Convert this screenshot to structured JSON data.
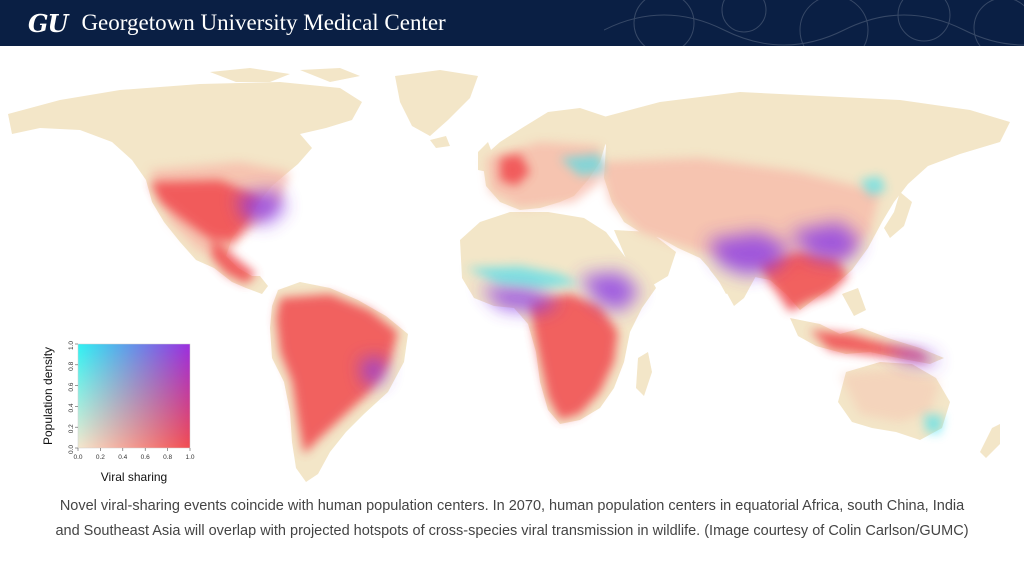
{
  "header": {
    "logo_text": "GU",
    "org_name": "Georgetown University Medical Center"
  },
  "map": {
    "legend": {
      "x_axis_label": "Viral sharing",
      "y_axis_label": "Population density",
      "x_ticks": [
        "0.0",
        "0.2",
        "0.4",
        "0.6",
        "0.8",
        "1.0"
      ],
      "y_ticks": [
        "0.0",
        "0.2",
        "0.4",
        "0.6",
        "0.8",
        "1.0"
      ],
      "colors": {
        "low_low": "#f4e8cf",
        "high_viral_low_pop": "#f24b50",
        "low_viral_high_pop": "#2ef2f2",
        "high_high": "#9b2de0"
      }
    },
    "colors": {
      "land_base": "#f3e6c8",
      "ocean": "#ffffff"
    }
  },
  "caption": {
    "line1": "Novel viral-sharing events coincide with human population centers. In 2070, human population centers in equatorial Africa, south China, India",
    "line2": "and Southeast Asia will overlap with projected hotspots of cross-species viral transmission in wildlife. (Image courtesy of Colin Carlson/GUMC)"
  }
}
